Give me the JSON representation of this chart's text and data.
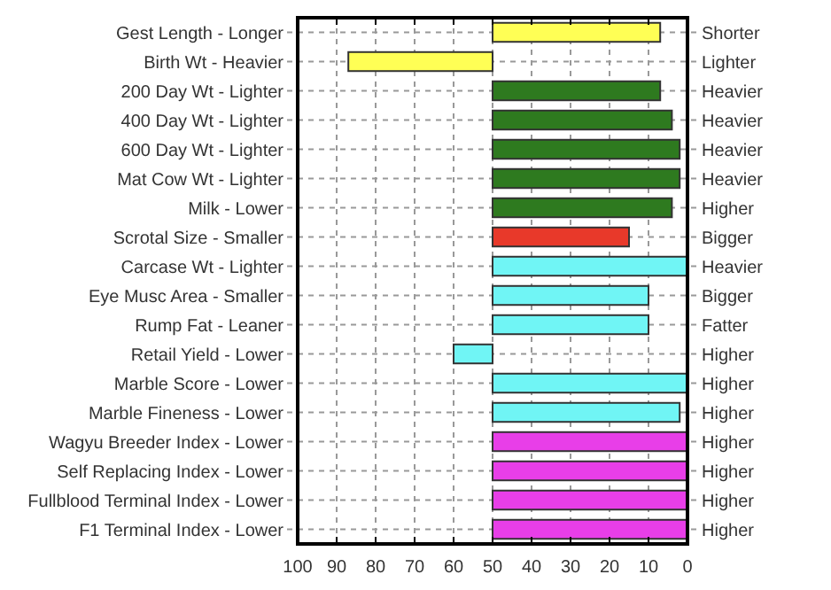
{
  "chart_data": {
    "type": "bar",
    "orientation": "horizontal",
    "categories": [
      "Gest Length - Longer",
      "Birth Wt - Heavier",
      "200 Day Wt - Lighter",
      "400 Day Wt - Lighter",
      "600 Day Wt - Lighter",
      "Mat Cow Wt - Lighter",
      "Milk - Lower",
      "Scrotal Size - Smaller",
      "Carcase Wt - Lighter",
      "Eye Musc Area - Smaller",
      "Rump Fat - Leaner",
      "Retail Yield - Lower",
      "Marble Score - Lower",
      "Marble Fineness - Lower",
      "Wagyu Breeder Index - Lower",
      "Self Replacing Index - Lower",
      "Fullblood Terminal Index - Lower",
      "F1 Terminal Index - Lower"
    ],
    "y2_categories": [
      "Shorter",
      "Lighter",
      "Heavier",
      "Heavier",
      "Heavier",
      "Heavier",
      "Higher",
      "Bigger",
      "Heavier",
      "Bigger",
      "Fatter",
      "Higher",
      "Higher",
      "Higher",
      "Higher",
      "Higher",
      "Higher",
      "Higher"
    ],
    "base": [
      50,
      50,
      50,
      50,
      50,
      50,
      50,
      50,
      50,
      50,
      50,
      50,
      50,
      50,
      50,
      50,
      50,
      50
    ],
    "values": [
      -43,
      37,
      -43,
      -46,
      -48,
      -48,
      -46,
      -35,
      -50,
      -40,
      -40,
      10,
      -50,
      -48,
      -50,
      -50,
      -50,
      -50
    ],
    "colors": [
      "#ffff55",
      "#ffff55",
      "#2e7a1f",
      "#2e7a1f",
      "#2e7a1f",
      "#2e7a1f",
      "#2e7a1f",
      "#e8392a",
      "#70f5f5",
      "#70f5f5",
      "#70f5f5",
      "#70f5f5",
      "#70f5f5",
      "#70f5f5",
      "#e83ee8",
      "#e83ee8",
      "#e83ee8",
      "#e83ee8"
    ],
    "xlim": [
      100,
      0
    ],
    "xticks": [
      100,
      90,
      80,
      70,
      60,
      50,
      40,
      30,
      20,
      10,
      0
    ],
    "grid": true
  }
}
